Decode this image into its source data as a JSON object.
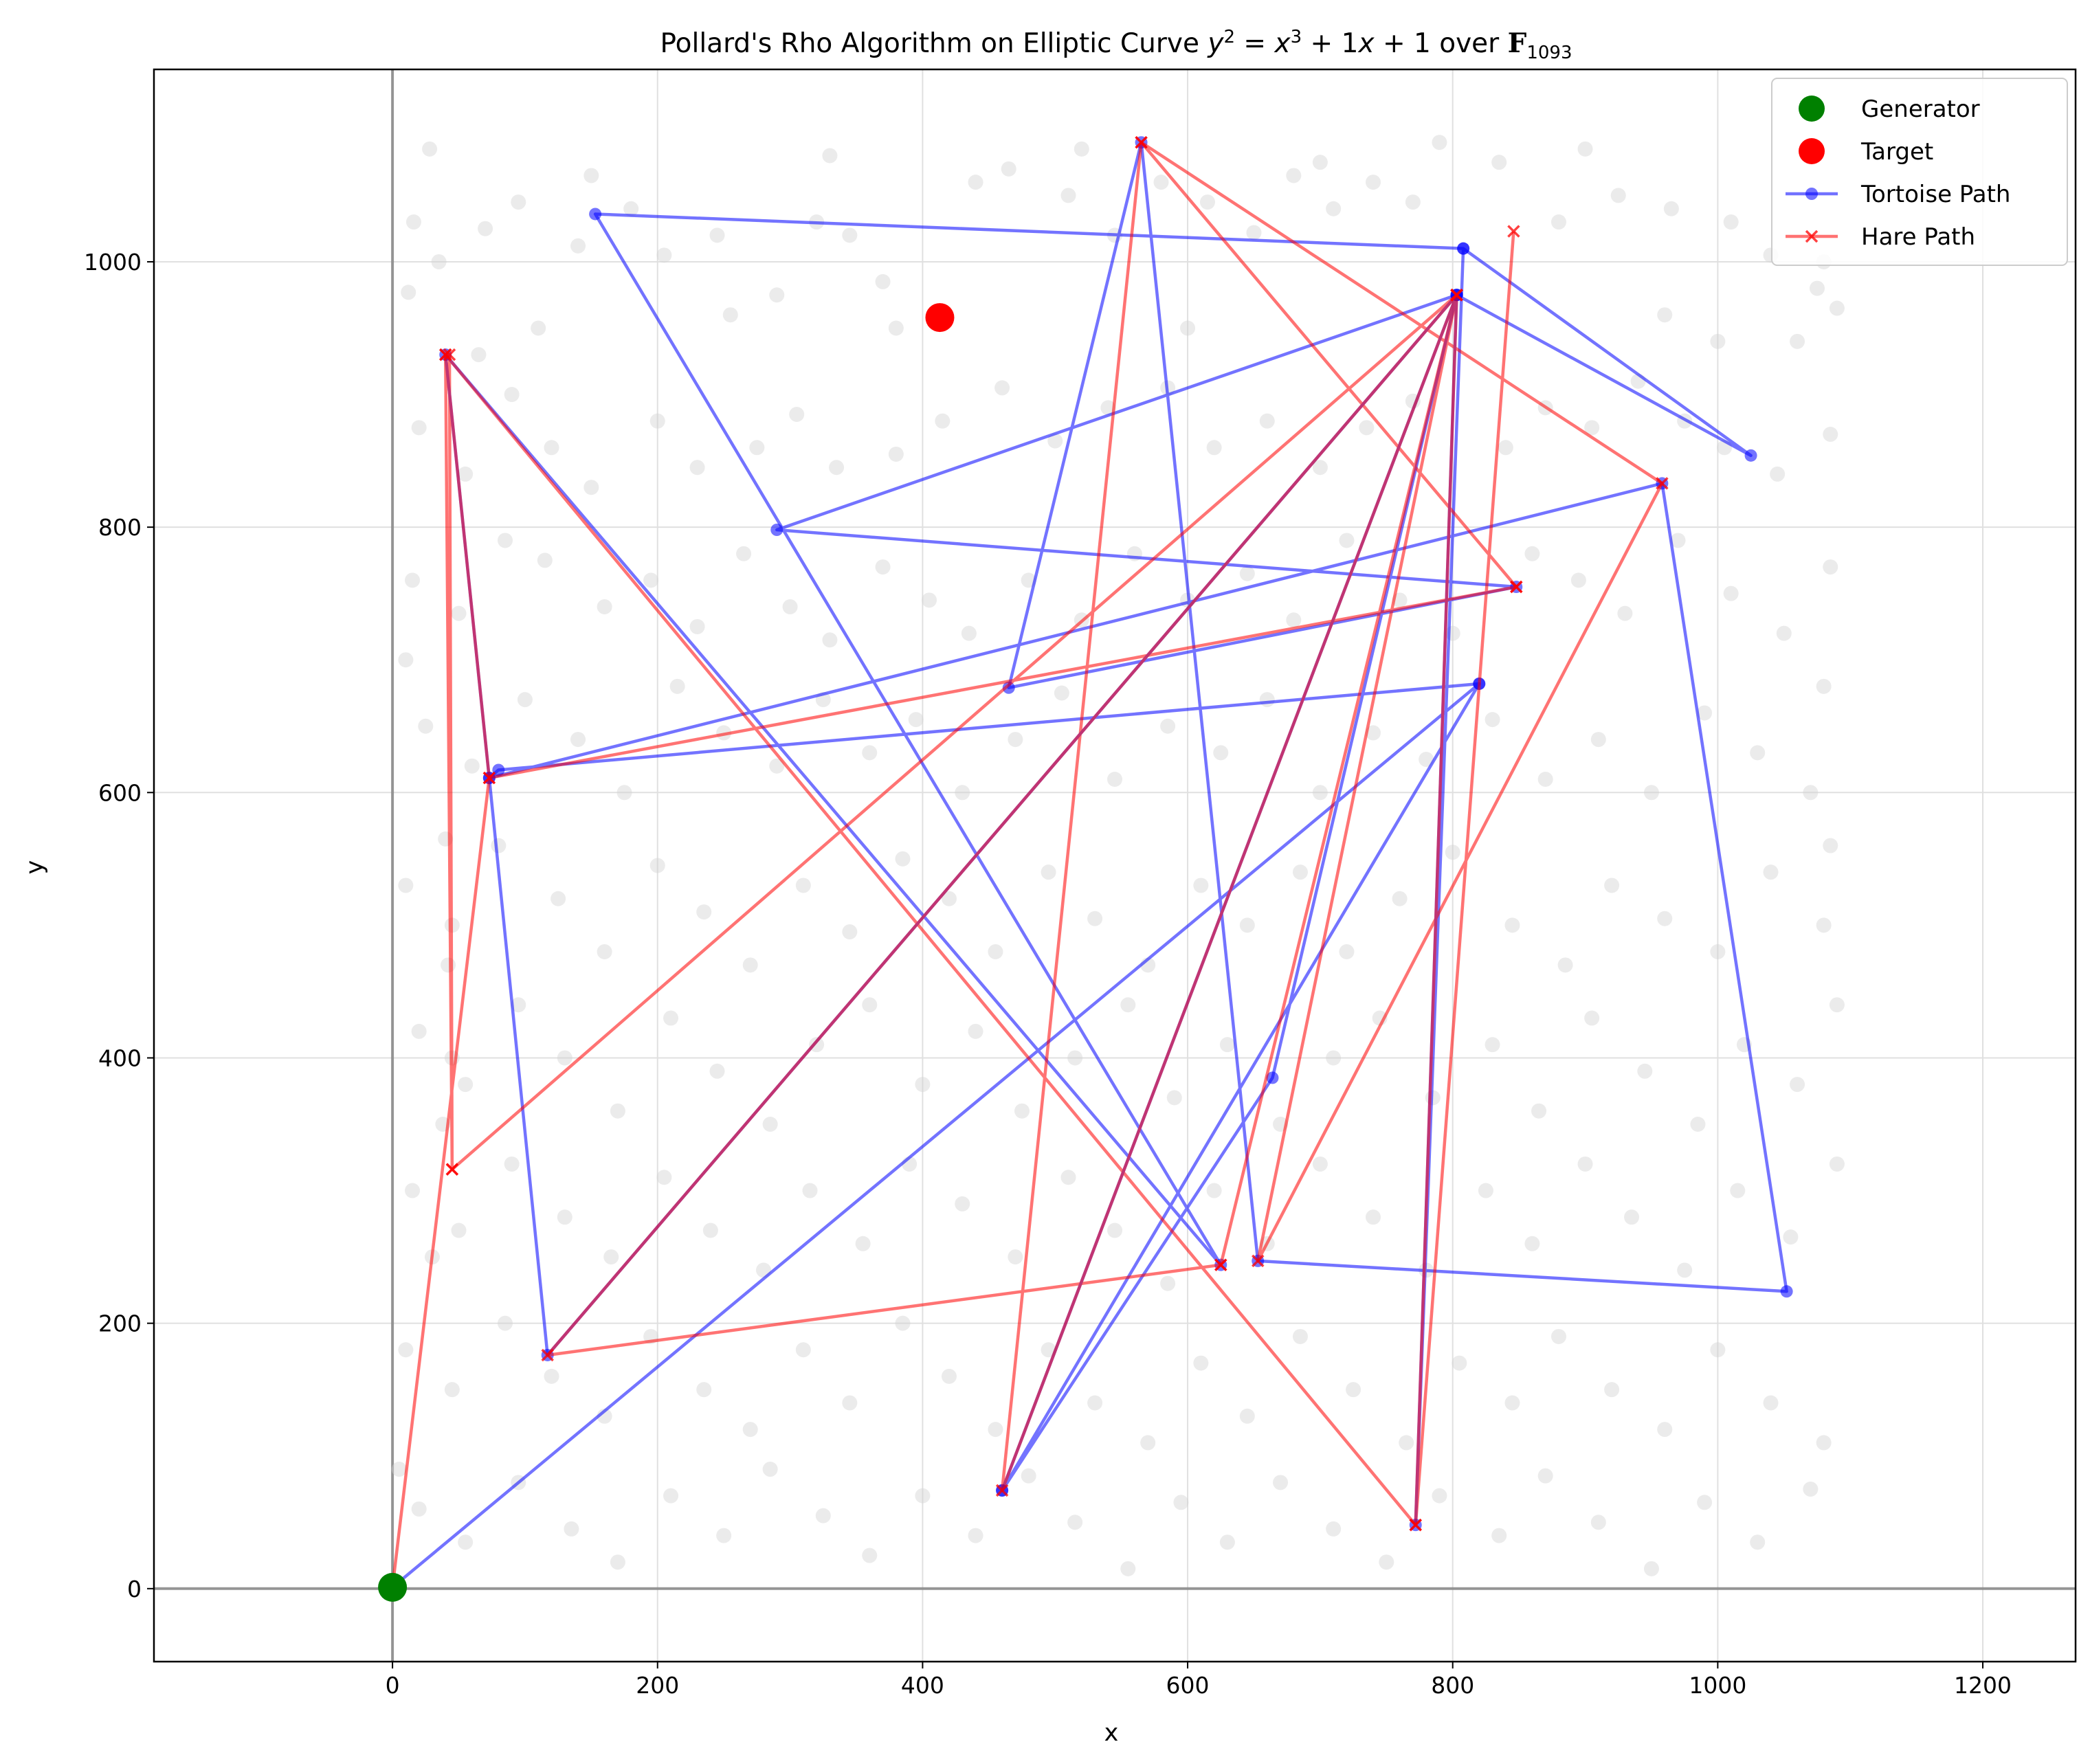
{
  "chart_data": {
    "type": "scatter",
    "title_prefix": "Pollard's Rho Algorithm on Elliptic Curve ",
    "title_equation": {
      "y": "y",
      "y_exp": "2",
      "eq": " = ",
      "x": "x",
      "x_exp": "3",
      "rest": " + 1",
      "x2": "x",
      "rest2": " + 1"
    },
    "title_suffix": " over ",
    "title_field": "F",
    "title_field_sub": "1093",
    "xlabel": "x",
    "ylabel": "y",
    "xlim": [
      -180,
      1270
    ],
    "ylim": [
      -55,
      1145
    ],
    "xticks": [
      0,
      200,
      400,
      600,
      800,
      1000,
      1200
    ],
    "yticks": [
      0,
      200,
      400,
      600,
      800,
      1000
    ],
    "grid": true,
    "legend_position": "top-right",
    "colors": {
      "generator": "#008000",
      "target": "#ff0000",
      "tortoise": "#0000ff",
      "hare": "#ff0000",
      "curve_points": "#d3d3d3",
      "axis_lines": "#808080",
      "grid": "#e0e0e0"
    },
    "legend": [
      {
        "label": "Generator",
        "marker": "big-circle",
        "color": "#008000"
      },
      {
        "label": "Target",
        "marker": "big-circle",
        "color": "#ff0000"
      },
      {
        "label": "Tortoise Path",
        "marker": "line-dot",
        "color": "#0000ff"
      },
      {
        "label": "Hare Path",
        "marker": "line-x",
        "color": "#ff0000"
      }
    ],
    "generator": {
      "x": 0,
      "y": 1
    },
    "target": {
      "x": 413,
      "y": 958
    },
    "tortoise_path": [
      [
        0,
        1
      ],
      [
        820,
        682
      ],
      [
        460,
        74
      ],
      [
        664,
        385
      ],
      [
        803,
        975
      ],
      [
        290,
        798
      ],
      [
        848,
        755
      ],
      [
        465,
        679
      ],
      [
        565,
        1090
      ],
      [
        653,
        247
      ],
      [
        1052,
        224
      ],
      [
        958,
        833
      ],
      [
        73,
        611
      ],
      [
        80,
        617
      ],
      [
        820,
        682
      ],
      [
        460,
        74
      ],
      [
        803,
        975
      ],
      [
        1025,
        854
      ],
      [
        808,
        1010
      ],
      [
        153,
        1036
      ],
      [
        625,
        244
      ],
      [
        40,
        930
      ],
      [
        73,
        611
      ],
      [
        117,
        176
      ],
      [
        803,
        975
      ],
      [
        772,
        48
      ],
      [
        808,
        1010
      ]
    ],
    "hare_path": [
      [
        0,
        1
      ],
      [
        73,
        611
      ],
      [
        848,
        755
      ],
      [
        565,
        1090
      ],
      [
        958,
        833
      ],
      [
        653,
        247
      ],
      [
        803,
        975
      ],
      [
        460,
        74
      ],
      [
        565,
        1090
      ],
      [
        848,
        755
      ],
      [
        73,
        611
      ],
      [
        40,
        930
      ],
      [
        45,
        316
      ],
      [
        803,
        975
      ],
      [
        117,
        176
      ],
      [
        625,
        244
      ],
      [
        803,
        975
      ],
      [
        772,
        48
      ],
      [
        40,
        930
      ],
      [
        43,
        930
      ],
      [
        45,
        316
      ],
      [
        803,
        975
      ],
      [
        625,
        244
      ],
      [
        803,
        975
      ],
      [
        772,
        48
      ],
      [
        846,
        1023
      ]
    ],
    "curve_points": [
      [
        12,
        977
      ],
      [
        16,
        1030
      ],
      [
        35,
        1000
      ],
      [
        70,
        1025
      ],
      [
        95,
        1045
      ],
      [
        140,
        1012
      ],
      [
        180,
        1040
      ],
      [
        205,
        1005
      ],
      [
        245,
        1020
      ],
      [
        290,
        975
      ],
      [
        320,
        1030
      ],
      [
        345,
        1020
      ],
      [
        370,
        985
      ],
      [
        440,
        1060
      ],
      [
        465,
        1070
      ],
      [
        510,
        1050
      ],
      [
        545,
        1020
      ],
      [
        580,
        1060
      ],
      [
        615,
        1045
      ],
      [
        650,
        1022
      ],
      [
        680,
        1065
      ],
      [
        710,
        1040
      ],
      [
        740,
        1060
      ],
      [
        770,
        1045
      ],
      [
        790,
        1090
      ],
      [
        835,
        1075
      ],
      [
        880,
        1030
      ],
      [
        925,
        1050
      ],
      [
        965,
        1040
      ],
      [
        1010,
        1030
      ],
      [
        1040,
        1005
      ],
      [
        1080,
        1000
      ],
      [
        1075,
        980
      ],
      [
        1060,
        940
      ],
      [
        1090,
        965
      ],
      [
        20,
        875
      ],
      [
        55,
        840
      ],
      [
        90,
        900
      ],
      [
        120,
        860
      ],
      [
        150,
        830
      ],
      [
        200,
        880
      ],
      [
        230,
        845
      ],
      [
        275,
        860
      ],
      [
        305,
        885
      ],
      [
        335,
        845
      ],
      [
        380,
        855
      ],
      [
        415,
        880
      ],
      [
        460,
        905
      ],
      [
        500,
        865
      ],
      [
        540,
        890
      ],
      [
        585,
        905
      ],
      [
        620,
        860
      ],
      [
        660,
        880
      ],
      [
        700,
        845
      ],
      [
        735,
        875
      ],
      [
        770,
        895
      ],
      [
        840,
        860
      ],
      [
        870,
        890
      ],
      [
        905,
        875
      ],
      [
        940,
        910
      ],
      [
        975,
        880
      ],
      [
        1005,
        860
      ],
      [
        1045,
        840
      ],
      [
        1085,
        870
      ],
      [
        15,
        760
      ],
      [
        50,
        735
      ],
      [
        85,
        790
      ],
      [
        115,
        775
      ],
      [
        160,
        740
      ],
      [
        195,
        760
      ],
      [
        230,
        725
      ],
      [
        265,
        780
      ],
      [
        300,
        740
      ],
      [
        330,
        715
      ],
      [
        370,
        770
      ],
      [
        405,
        745
      ],
      [
        435,
        720
      ],
      [
        480,
        760
      ],
      [
        520,
        730
      ],
      [
        560,
        780
      ],
      [
        600,
        745
      ],
      [
        645,
        765
      ],
      [
        680,
        730
      ],
      [
        720,
        790
      ],
      [
        760,
        745
      ],
      [
        800,
        720
      ],
      [
        860,
        780
      ],
      [
        895,
        760
      ],
      [
        930,
        735
      ],
      [
        970,
        790
      ],
      [
        1010,
        750
      ],
      [
        1050,
        720
      ],
      [
        1085,
        770
      ],
      [
        25,
        650
      ],
      [
        60,
        620
      ],
      [
        100,
        670
      ],
      [
        140,
        640
      ],
      [
        175,
        600
      ],
      [
        215,
        680
      ],
      [
        250,
        645
      ],
      [
        290,
        620
      ],
      [
        325,
        670
      ],
      [
        360,
        630
      ],
      [
        395,
        655
      ],
      [
        430,
        600
      ],
      [
        470,
        640
      ],
      [
        505,
        675
      ],
      [
        545,
        610
      ],
      [
        585,
        650
      ],
      [
        625,
        630
      ],
      [
        660,
        670
      ],
      [
        700,
        600
      ],
      [
        740,
        645
      ],
      [
        780,
        625
      ],
      [
        830,
        655
      ],
      [
        870,
        610
      ],
      [
        910,
        640
      ],
      [
        950,
        600
      ],
      [
        990,
        660
      ],
      [
        1030,
        630
      ],
      [
        1070,
        600
      ],
      [
        10,
        530
      ],
      [
        45,
        500
      ],
      [
        80,
        560
      ],
      [
        125,
        520
      ],
      [
        160,
        480
      ],
      [
        200,
        545
      ],
      [
        235,
        510
      ],
      [
        270,
        470
      ],
      [
        310,
        530
      ],
      [
        345,
        495
      ],
      [
        385,
        550
      ],
      [
        420,
        520
      ],
      [
        455,
        480
      ],
      [
        495,
        540
      ],
      [
        530,
        505
      ],
      [
        570,
        470
      ],
      [
        610,
        530
      ],
      [
        645,
        500
      ],
      [
        685,
        540
      ],
      [
        720,
        480
      ],
      [
        760,
        520
      ],
      [
        800,
        555
      ],
      [
        845,
        500
      ],
      [
        885,
        470
      ],
      [
        920,
        530
      ],
      [
        960,
        505
      ],
      [
        1000,
        480
      ],
      [
        1040,
        540
      ],
      [
        1080,
        500
      ],
      [
        20,
        420
      ],
      [
        55,
        380
      ],
      [
        95,
        440
      ],
      [
        130,
        400
      ],
      [
        170,
        360
      ],
      [
        210,
        430
      ],
      [
        245,
        390
      ],
      [
        285,
        350
      ],
      [
        320,
        410
      ],
      [
        360,
        440
      ],
      [
        400,
        380
      ],
      [
        440,
        420
      ],
      [
        475,
        360
      ],
      [
        515,
        400
      ],
      [
        555,
        440
      ],
      [
        590,
        370
      ],
      [
        630,
        410
      ],
      [
        670,
        350
      ],
      [
        710,
        400
      ],
      [
        745,
        430
      ],
      [
        785,
        370
      ],
      [
        830,
        410
      ],
      [
        865,
        360
      ],
      [
        905,
        430
      ],
      [
        945,
        390
      ],
      [
        985,
        350
      ],
      [
        1020,
        410
      ],
      [
        1060,
        380
      ],
      [
        1090,
        440
      ],
      [
        15,
        300
      ],
      [
        50,
        270
      ],
      [
        90,
        320
      ],
      [
        130,
        280
      ],
      [
        165,
        250
      ],
      [
        205,
        310
      ],
      [
        240,
        270
      ],
      [
        280,
        240
      ],
      [
        315,
        300
      ],
      [
        355,
        260
      ],
      [
        390,
        320
      ],
      [
        430,
        290
      ],
      [
        470,
        250
      ],
      [
        510,
        310
      ],
      [
        545,
        270
      ],
      [
        585,
        230
      ],
      [
        620,
        300
      ],
      [
        660,
        260
      ],
      [
        700,
        320
      ],
      [
        740,
        280
      ],
      [
        780,
        240
      ],
      [
        825,
        300
      ],
      [
        860,
        260
      ],
      [
        900,
        320
      ],
      [
        935,
        280
      ],
      [
        975,
        240
      ],
      [
        1015,
        300
      ],
      [
        1055,
        265
      ],
      [
        1090,
        320
      ],
      [
        10,
        180
      ],
      [
        45,
        150
      ],
      [
        85,
        200
      ],
      [
        120,
        160
      ],
      [
        160,
        130
      ],
      [
        195,
        190
      ],
      [
        235,
        150
      ],
      [
        270,
        120
      ],
      [
        310,
        180
      ],
      [
        345,
        140
      ],
      [
        385,
        200
      ],
      [
        420,
        160
      ],
      [
        455,
        120
      ],
      [
        495,
        180
      ],
      [
        530,
        140
      ],
      [
        570,
        110
      ],
      [
        610,
        170
      ],
      [
        645,
        130
      ],
      [
        685,
        190
      ],
      [
        725,
        150
      ],
      [
        765,
        110
      ],
      [
        805,
        170
      ],
      [
        845,
        140
      ],
      [
        880,
        190
      ],
      [
        920,
        150
      ],
      [
        960,
        120
      ],
      [
        1000,
        180
      ],
      [
        1040,
        140
      ],
      [
        1080,
        110
      ],
      [
        20,
        60
      ],
      [
        55,
        35
      ],
      [
        95,
        80
      ],
      [
        135,
        45
      ],
      [
        170,
        20
      ],
      [
        210,
        70
      ],
      [
        250,
        40
      ],
      [
        285,
        90
      ],
      [
        325,
        55
      ],
      [
        360,
        25
      ],
      [
        400,
        70
      ],
      [
        440,
        40
      ],
      [
        480,
        85
      ],
      [
        515,
        50
      ],
      [
        555,
        15
      ],
      [
        595,
        65
      ],
      [
        630,
        35
      ],
      [
        670,
        80
      ],
      [
        710,
        45
      ],
      [
        750,
        20
      ],
      [
        790,
        70
      ],
      [
        835,
        40
      ],
      [
        870,
        85
      ],
      [
        910,
        50
      ],
      [
        950,
        15
      ],
      [
        990,
        65
      ],
      [
        1030,
        35
      ],
      [
        1070,
        75
      ],
      [
        28,
        1085
      ],
      [
        150,
        1065
      ],
      [
        330,
        1080
      ],
      [
        520,
        1085
      ],
      [
        700,
        1075
      ],
      [
        900,
        1085
      ],
      [
        40,
        565
      ],
      [
        42,
        470
      ],
      [
        45,
        400
      ],
      [
        38,
        350
      ],
      [
        30,
        250
      ],
      [
        5,
        90
      ],
      [
        65,
        930
      ],
      [
        110,
        950
      ],
      [
        255,
        960
      ],
      [
        380,
        950
      ],
      [
        600,
        950
      ],
      [
        960,
        960
      ],
      [
        1000,
        940
      ],
      [
        10,
        700
      ],
      [
        1080,
        680
      ],
      [
        1085,
        560
      ]
    ]
  }
}
